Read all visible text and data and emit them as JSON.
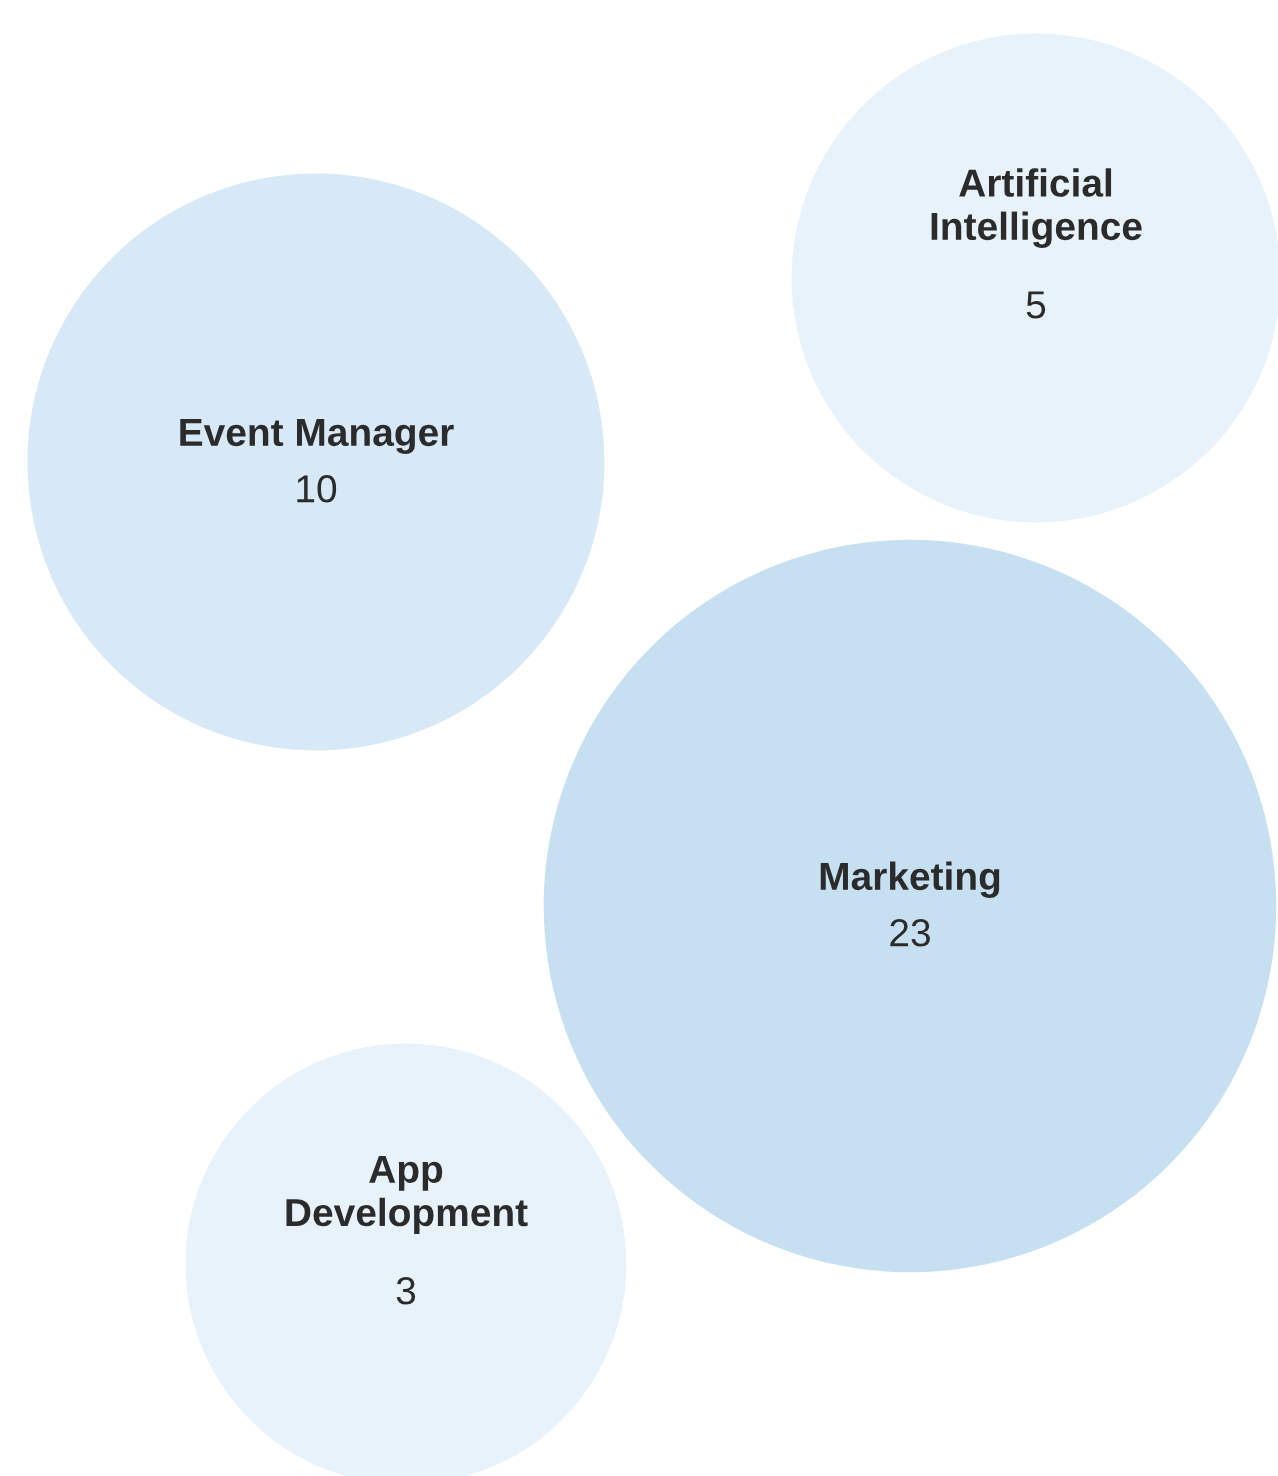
{
  "chart_data": {
    "type": "other",
    "categories": [
      "Event Manager",
      "Artificial\nIntelligence",
      "Marketing",
      "App\nDevelopment"
    ],
    "values": [
      10,
      5,
      23,
      3
    ],
    "colors": [
      "#d7e8f6",
      "#e8f2fa",
      "#c6e0f2",
      "#e8f2fa"
    ],
    "data_labels": true
  }
}
